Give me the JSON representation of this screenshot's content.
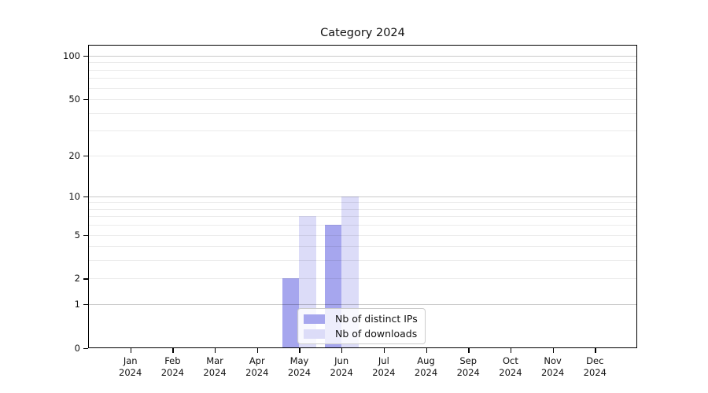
{
  "chart_data": {
    "type": "bar",
    "title": "Category 2024",
    "categories": [
      "Jan",
      "Feb",
      "Mar",
      "Apr",
      "May",
      "Jun",
      "Jul",
      "Aug",
      "Sep",
      "Oct",
      "Nov",
      "Dec"
    ],
    "year_label": "2024",
    "series": [
      {
        "name": "Nb of distinct IPs",
        "color": "#a6a6ee",
        "values": [
          0,
          0,
          0,
          0,
          2,
          6,
          0,
          0,
          0,
          0,
          0,
          0
        ]
      },
      {
        "name": "Nb of downloads",
        "color": "#dcdcf8",
        "values": [
          0,
          0,
          0,
          0,
          7,
          10,
          0,
          0,
          0,
          0,
          0,
          0
        ]
      }
    ],
    "yscale": "log1p",
    "ylim": [
      0,
      119
    ],
    "y_tick_labels": [
      0,
      1,
      2,
      5,
      10,
      20,
      50,
      100
    ],
    "y_grid_major": [
      1,
      10,
      100
    ],
    "y_grid_minor": [
      2,
      3,
      4,
      5,
      6,
      7,
      8,
      9,
      20,
      30,
      40,
      50,
      60,
      70,
      80,
      90
    ],
    "grid": true,
    "legend_position": "lower center",
    "colors": {
      "axis": "#000000",
      "text": "#111111",
      "grid_major": "#c7c7c7",
      "grid_minor": "#ebebeb"
    }
  }
}
